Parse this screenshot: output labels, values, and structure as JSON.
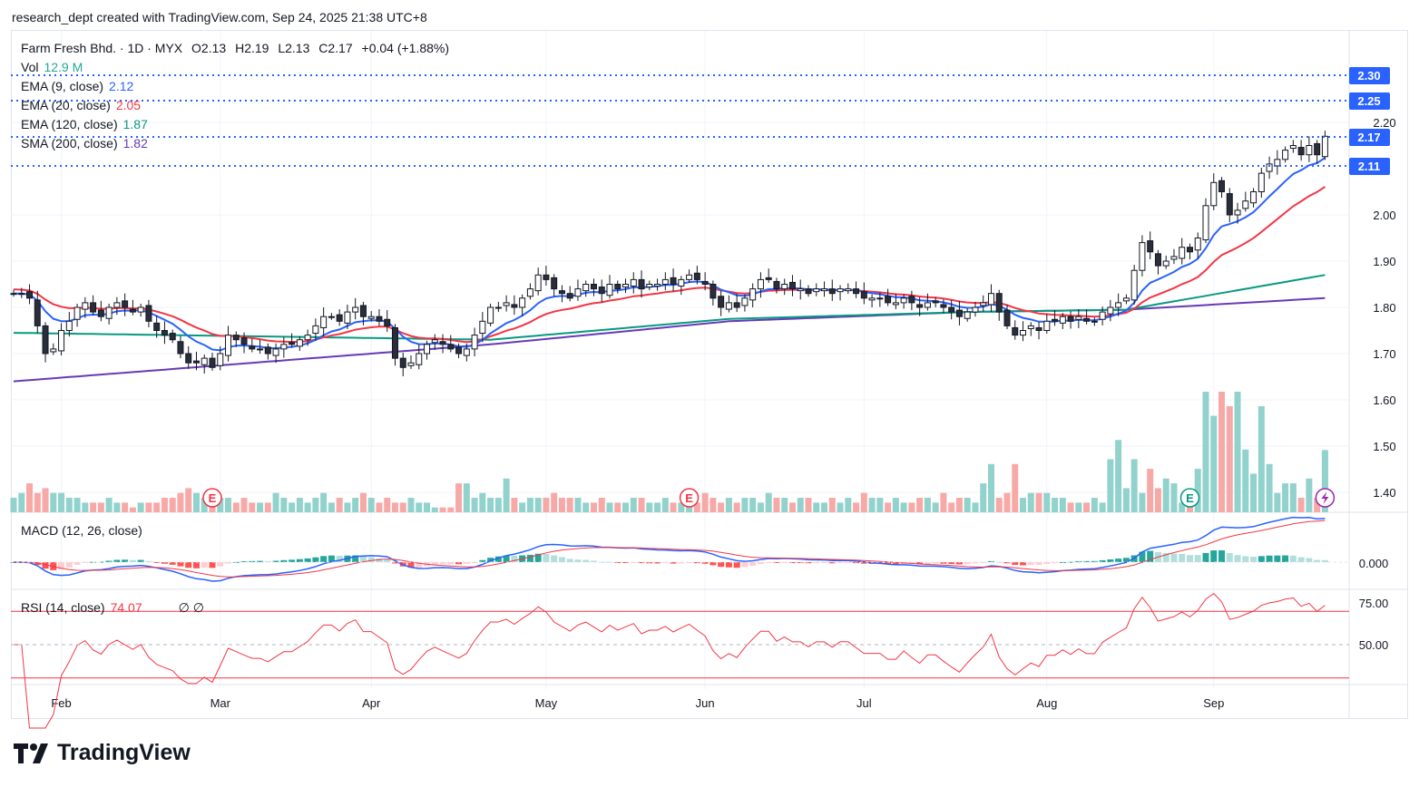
{
  "header": {
    "attribution": "research_dept created with TradingView.com, Sep 24, 2025 21:38 UTC+8"
  },
  "legend": {
    "symbol": "Farm Fresh Bhd. · 1D · MYX",
    "open": "O2.13",
    "high": "H2.19",
    "low": "L2.13",
    "close": "C2.17",
    "change": "+0.04 (+1.88%)",
    "vol_label": "Vol",
    "vol_value": "12.9 M",
    "ema9_label": "EMA (9, close)",
    "ema9_value": "2.12",
    "ema20_label": "EMA (20, close)",
    "ema20_value": "2.05",
    "ema120_label": "EMA (120, close)",
    "ema120_value": "1.87",
    "sma200_label": "SMA (200, close)",
    "sma200_value": "1.82",
    "macd_label": "MACD (12, 26, close)",
    "rsi_label": "RSI (14, close)",
    "rsi_value": "74.07",
    "rsi_extra": "∅  ∅"
  },
  "logo": "TradingView",
  "colors": {
    "up": "#ffffff",
    "down": "#2a2e39",
    "ema9": "#2962ff",
    "ema20": "#f23645",
    "ema120": "#089981",
    "sma200": "#673ab7",
    "vol_up": "#92d2cc",
    "vol_down": "#f7a9a7",
    "label": "#2962ff"
  },
  "chart_data": {
    "type": "candlestick",
    "title": "Farm Fresh Bhd. 1D MYX",
    "x_ticks": [
      {
        "label": "Feb",
        "index": 6
      },
      {
        "label": "Mar",
        "index": 26
      },
      {
        "label": "Apr",
        "index": 45
      },
      {
        "label": "May",
        "index": 67
      },
      {
        "label": "Jun",
        "index": 87
      },
      {
        "label": "Jul",
        "index": 107
      },
      {
        "label": "Aug",
        "index": 130
      },
      {
        "label": "Sep",
        "index": 151
      }
    ],
    "y_ticks": [
      "2.20",
      "2.00",
      "1.90",
      "1.80",
      "1.70",
      "1.60",
      "1.50",
      "1.40"
    ],
    "ylim": [
      1.37,
      2.36
    ],
    "price_labels": [
      "2.30",
      "2.25",
      "2.17",
      "2.11"
    ],
    "close": [
      1.83,
      1.83,
      1.82,
      1.76,
      1.7,
      1.71,
      1.75,
      1.77,
      1.8,
      1.81,
      1.79,
      1.78,
      1.8,
      1.81,
      1.8,
      1.79,
      1.8,
      1.77,
      1.75,
      1.74,
      1.73,
      1.7,
      1.68,
      1.68,
      1.69,
      1.67,
      1.7,
      1.74,
      1.73,
      1.72,
      1.71,
      1.71,
      1.7,
      1.71,
      1.72,
      1.72,
      1.73,
      1.74,
      1.76,
      1.78,
      1.78,
      1.77,
      1.79,
      1.8,
      1.78,
      1.78,
      1.77,
      1.76,
      1.69,
      1.67,
      1.68,
      1.7,
      1.72,
      1.73,
      1.72,
      1.71,
      1.7,
      1.71,
      1.74,
      1.77,
      1.8,
      1.8,
      1.81,
      1.8,
      1.82,
      1.84,
      1.87,
      1.86,
      1.84,
      1.83,
      1.82,
      1.84,
      1.85,
      1.84,
      1.83,
      1.85,
      1.84,
      1.85,
      1.86,
      1.84,
      1.85,
      1.85,
      1.86,
      1.85,
      1.86,
      1.87,
      1.86,
      1.85,
      1.82,
      1.8,
      1.81,
      1.8,
      1.82,
      1.84,
      1.86,
      1.86,
      1.84,
      1.85,
      1.84,
      1.84,
      1.83,
      1.84,
      1.84,
      1.83,
      1.84,
      1.84,
      1.83,
      1.82,
      1.82,
      1.82,
      1.81,
      1.81,
      1.82,
      1.81,
      1.8,
      1.81,
      1.81,
      1.8,
      1.79,
      1.78,
      1.79,
      1.8,
      1.81,
      1.83,
      1.79,
      1.76,
      1.74,
      1.75,
      1.76,
      1.75,
      1.77,
      1.77,
      1.78,
      1.77,
      1.78,
      1.77,
      1.77,
      1.79,
      1.8,
      1.81,
      1.82,
      1.88,
      1.94,
      1.92,
      1.89,
      1.9,
      1.91,
      1.93,
      1.92,
      1.95,
      2.02,
      2.07,
      2.05,
      2.0,
      2.01,
      2.03,
      2.05,
      2.09,
      2.11,
      2.12,
      2.14,
      2.15,
      2.13,
      2.15,
      2.13,
      2.17
    ],
    "volume_m": [
      3,
      4,
      6,
      4,
      5,
      4,
      4,
      3,
      3,
      2,
      2,
      2,
      3,
      2,
      2,
      1,
      2,
      2,
      2,
      3,
      3,
      4,
      5,
      4,
      3,
      4,
      3,
      3,
      2,
      3,
      2,
      2,
      2,
      4,
      3,
      2,
      3,
      2,
      3,
      4,
      2,
      3,
      2,
      3,
      4,
      3,
      2,
      3,
      2,
      2,
      3,
      2,
      2,
      1,
      1,
      1,
      6,
      6,
      3,
      4,
      3,
      3,
      7,
      3,
      2,
      3,
      3,
      3,
      4,
      3,
      3,
      3,
      2,
      2,
      3,
      2,
      2,
      2,
      3,
      3,
      2,
      2,
      3,
      2,
      2,
      3,
      2,
      4,
      3,
      2,
      3,
      2,
      3,
      3,
      2,
      4,
      3,
      3,
      2,
      3,
      3,
      2,
      2,
      3,
      2,
      3,
      2,
      4,
      3,
      3,
      2,
      3,
      2,
      2,
      3,
      3,
      2,
      4,
      2,
      3,
      3,
      2,
      6,
      10,
      3,
      4,
      10,
      3,
      4,
      4,
      4,
      3,
      3,
      2,
      2,
      2,
      3,
      2,
      11,
      15,
      5,
      11,
      4,
      9,
      5,
      7,
      6,
      2,
      4,
      9,
      25,
      20,
      25,
      22,
      25,
      13,
      8,
      22,
      10,
      4,
      6,
      6,
      3,
      7,
      3,
      12.9
    ],
    "ema120_keypoints": [
      [
        0,
        1.745
      ],
      [
        60,
        1.73
      ],
      [
        90,
        1.775
      ],
      [
        120,
        1.79
      ],
      [
        140,
        1.795
      ],
      [
        165,
        1.87
      ]
    ],
    "sma200_keypoints": [
      [
        0,
        1.64
      ],
      [
        30,
        1.68
      ],
      [
        60,
        1.72
      ],
      [
        90,
        1.77
      ],
      [
        120,
        1.79
      ],
      [
        140,
        1.795
      ],
      [
        165,
        1.82
      ]
    ],
    "events": [
      {
        "type": "earnings",
        "index": 25,
        "color": "red"
      },
      {
        "type": "earnings",
        "index": 85,
        "color": "red"
      },
      {
        "type": "earnings",
        "index": 148,
        "color": "green"
      },
      {
        "type": "split",
        "index": 165,
        "color": "purple"
      }
    ],
    "macd": {
      "zero_label": "0.000"
    },
    "rsi": {
      "ticks": [
        "75.00",
        "50.00"
      ],
      "upper": 70,
      "lower": 30
    }
  }
}
